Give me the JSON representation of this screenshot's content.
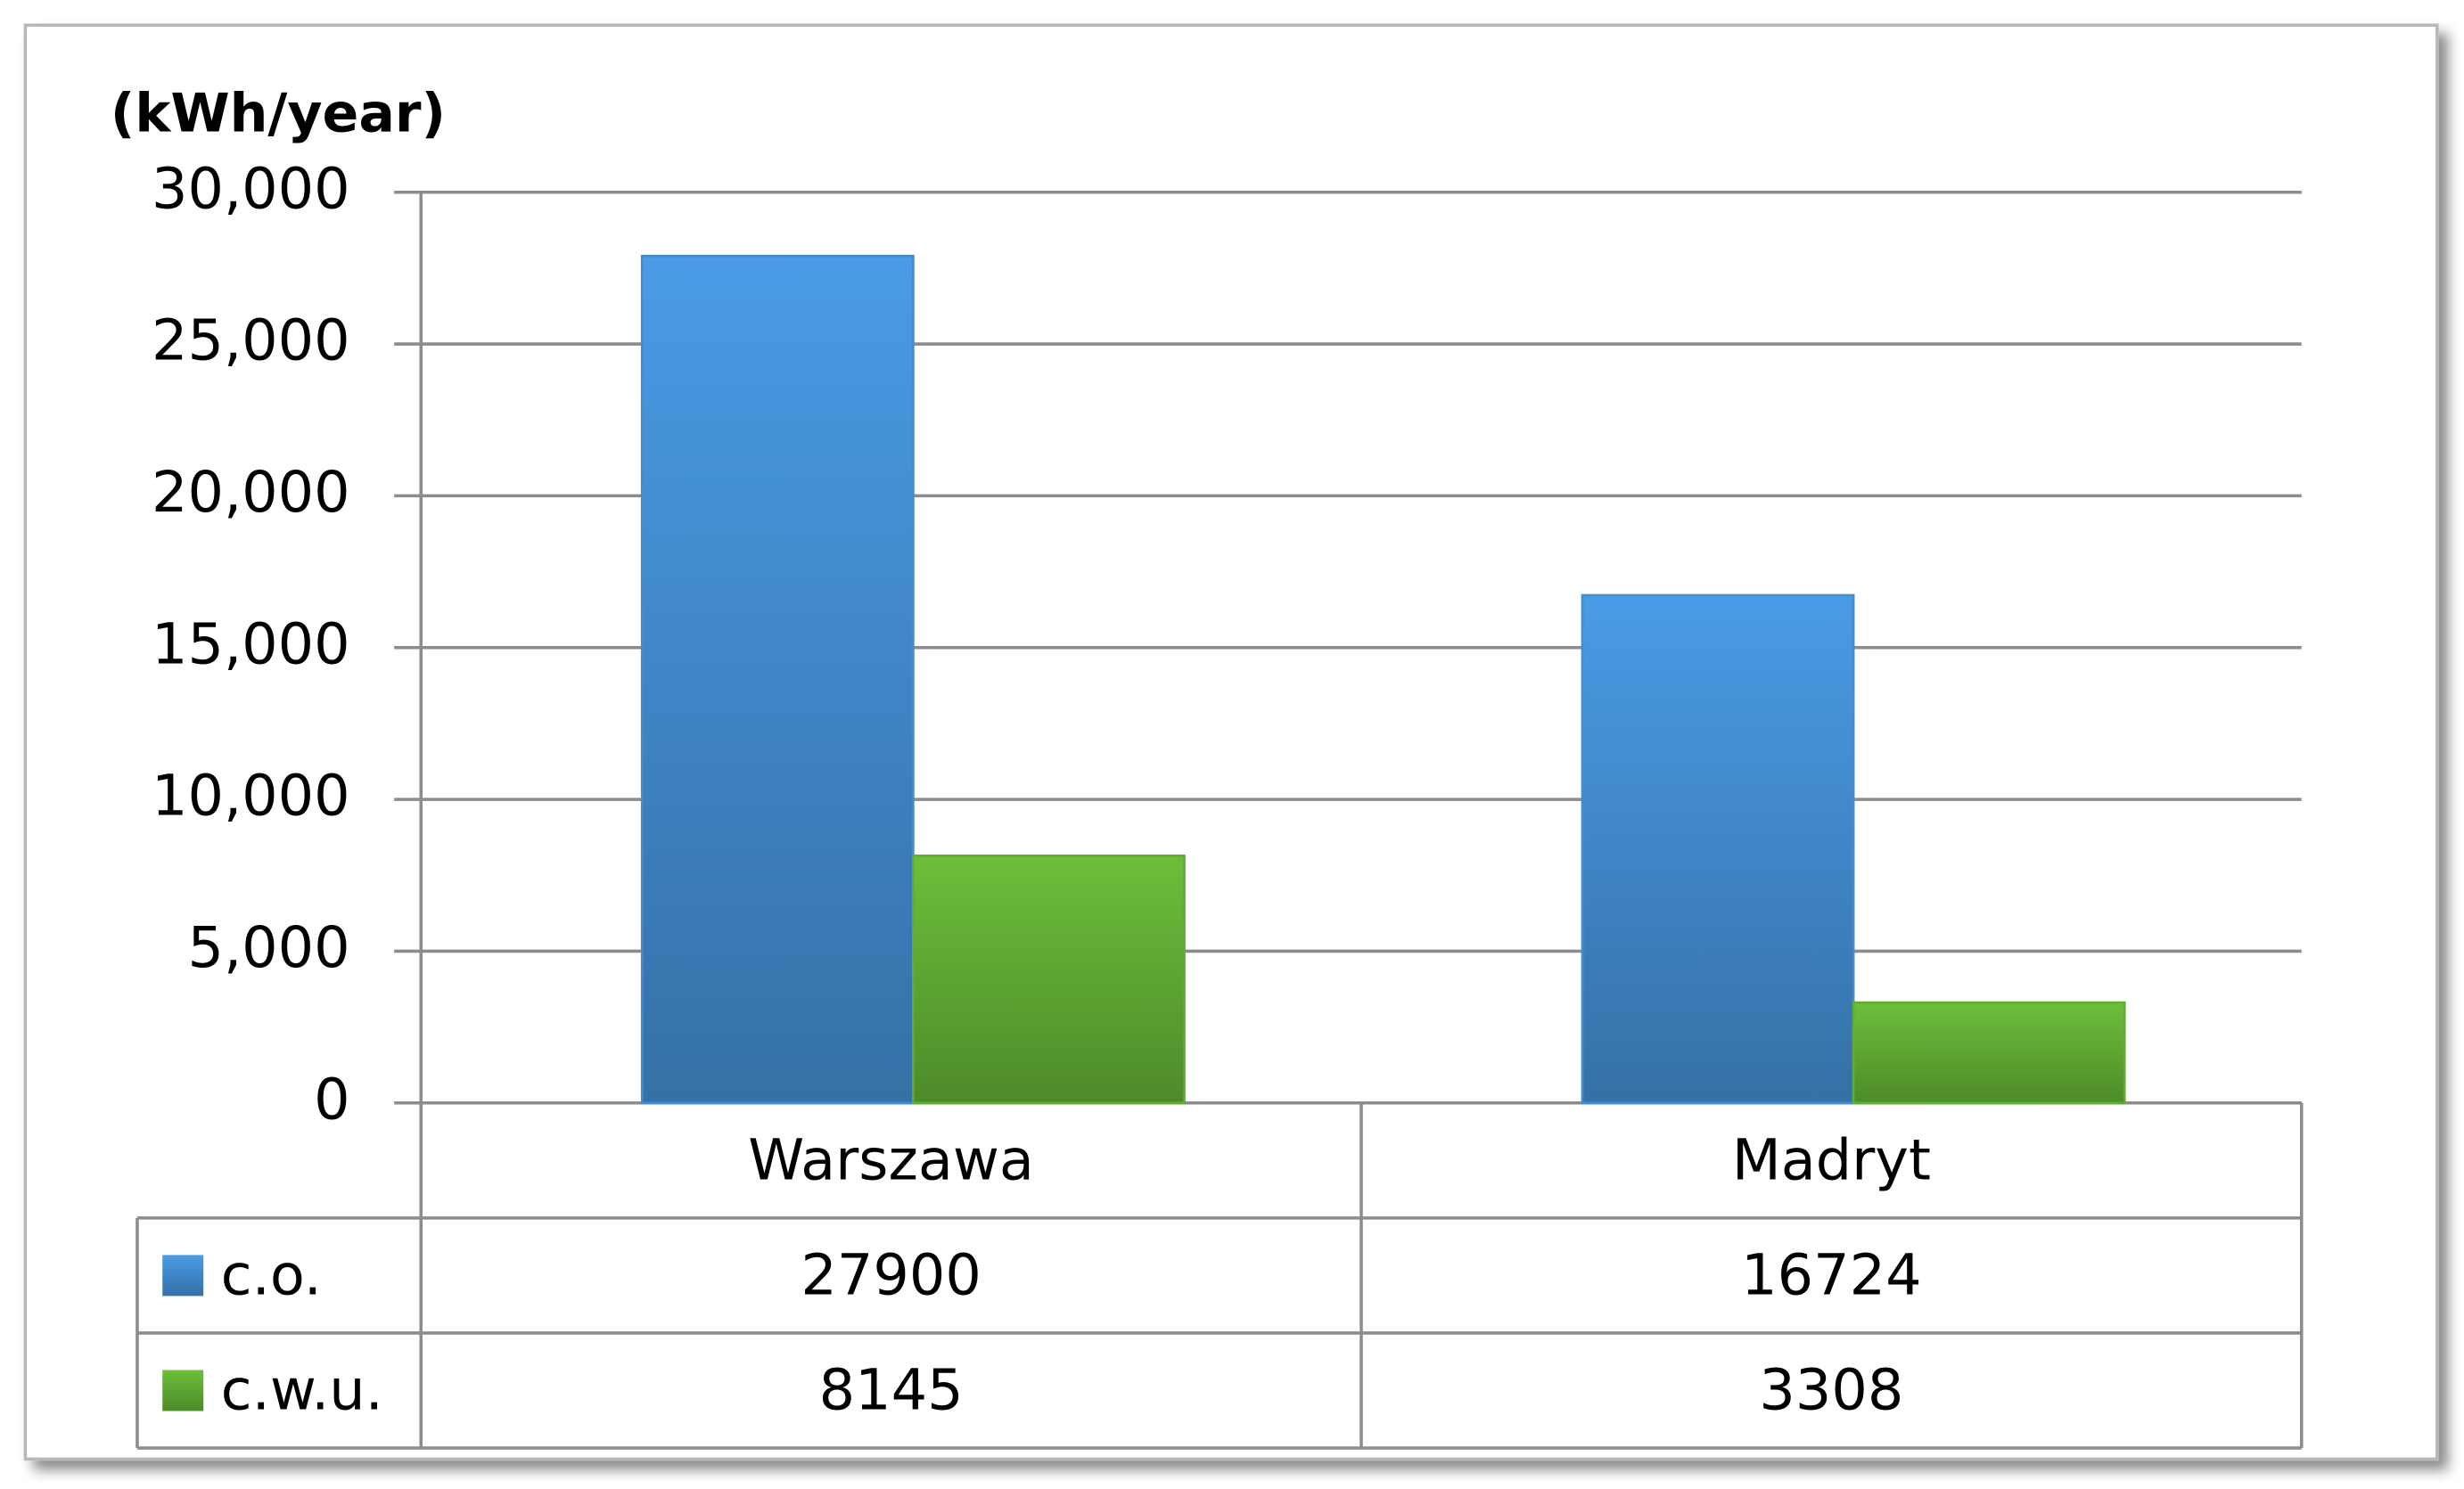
{
  "chart_data": {
    "type": "bar",
    "y_axis_label": "(kWh/year)",
    "categories": [
      "Warszawa",
      "Madryt"
    ],
    "series": [
      {
        "name": "c.o.",
        "color": "#4a9be6",
        "values": [
          27900,
          16724
        ]
      },
      {
        "name": "c.w.u.",
        "color": "#6cbf3a",
        "values": [
          8145,
          3308
        ]
      }
    ],
    "ylim": [
      0,
      30000
    ],
    "yticks": [
      0,
      {
        "value": 5000,
        "label": "5,000"
      },
      {
        "value": 10000,
        "label": "10,000"
      },
      {
        "value": 15000,
        "label": "15,000"
      },
      {
        "value": 20000,
        "label": "20,000"
      },
      {
        "value": 25000,
        "label": "25,000"
      },
      {
        "value": 30000,
        "label": "30,000"
      }
    ],
    "grid": true,
    "data_table": true
  }
}
